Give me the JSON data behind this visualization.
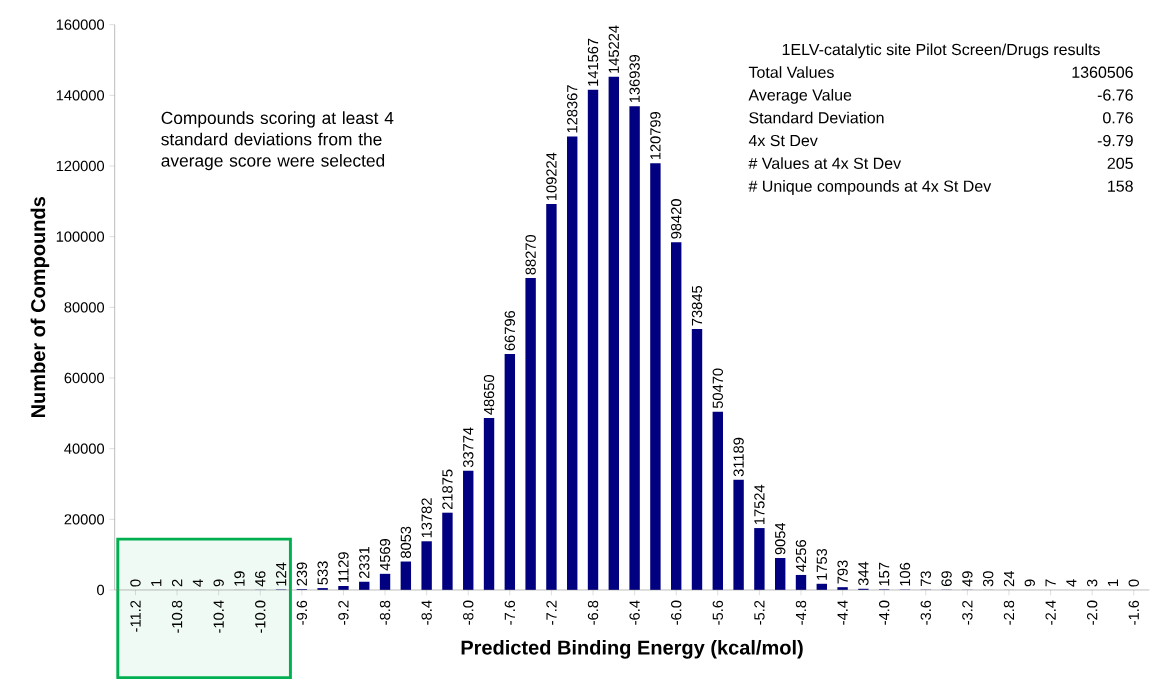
{
  "chart_data": {
    "type": "bar",
    "xlabel": "Predicted Binding Energy (kcal/mol)",
    "ylabel": "Number of Compounds",
    "x": [
      -11.2,
      -11.0,
      -10.8,
      -10.6,
      -10.4,
      -10.2,
      -10.0,
      -9.8,
      -9.6,
      -9.4,
      -9.2,
      -9.0,
      -8.8,
      -8.6,
      -8.4,
      -8.2,
      -8.0,
      -7.8,
      -7.6,
      -7.4,
      -7.2,
      -7.0,
      -6.8,
      -6.6,
      -6.4,
      -6.2,
      -6.0,
      -5.8,
      -5.6,
      -5.4,
      -5.2,
      -5.0,
      -4.8,
      -4.6,
      -4.4,
      -4.2,
      -4.0,
      -3.8,
      -3.6,
      -3.4,
      -3.2,
      -3.0,
      -2.8,
      -2.6,
      -2.4,
      -2.2,
      -2.0,
      -1.8,
      -1.6
    ],
    "values": [
      0,
      1,
      2,
      4,
      9,
      19,
      46,
      124,
      239,
      533,
      1129,
      2331,
      4569,
      8053,
      13782,
      21875,
      33774,
      48650,
      66796,
      88270,
      109224,
      128367,
      141567,
      145224,
      136939,
      120799,
      98420,
      73845,
      50470,
      31189,
      17524,
      9054,
      4256,
      1753,
      793,
      344,
      157,
      106,
      73,
      69,
      49,
      30,
      24,
      9,
      7,
      4,
      3,
      1,
      0
    ],
    "color": "#000080",
    "data_labels": true,
    "xlim": [
      -11.4,
      -1.45
    ],
    "xticks": [
      -11.2,
      -10.8,
      -10.4,
      {
        "value": -10,
        "label": "-10.0"
      },
      -9.6,
      -9.2,
      -8.8,
      -8.4,
      {
        "value": -8,
        "label": "-8.0"
      },
      -7.6,
      -7.2,
      -6.8,
      -6.4,
      {
        "value": -6,
        "label": "-6.0"
      },
      -5.6,
      -5.2,
      -4.8,
      -4.4,
      {
        "value": -4,
        "label": "-4.0"
      },
      -3.6,
      -3.2,
      -2.8,
      -2.4,
      {
        "value": -2,
        "label": "-2.0"
      },
      -1.6
    ],
    "ylim": [
      0,
      160000
    ],
    "yticks": [
      0,
      20000,
      40000,
      60000,
      80000,
      100000,
      120000,
      140000,
      160000
    ],
    "bands": [
      {
        "axis": "x",
        "from": -11.37,
        "to": -9.71,
        "color": "#00b050"
      }
    ],
    "annotations": [
      "Compounds scoring at least 4 standard deviations from the average score were selected",
      "1ELV-catalytic site Pilot Screen/Drugs results",
      "Total Values",
      "1360506",
      "Average Value",
      "-6.76",
      "Standard Deviation",
      "0.76",
      "4x St Dev",
      "-9.79",
      "# Values at 4x St Dev",
      "205",
      "# Unique compounds at 4x St Dev",
      "158"
    ]
  }
}
